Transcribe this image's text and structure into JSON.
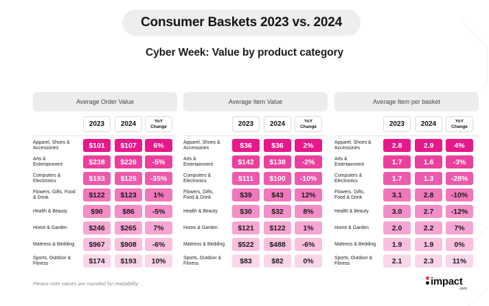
{
  "title": "Consumer Baskets 2023 vs. 2024",
  "subtitle": "Cyber Week: Value by product category",
  "footnote": "Please note values are rounded for readability",
  "logo": {
    "word": "impact",
    "suffix": ".com",
    "dot_top_color": "#e8363e",
    "dot_bottom_color": "#111111"
  },
  "row_colors": [
    {
      "bg": "#e6198a",
      "fg": "#ffffff"
    },
    {
      "bg": "#ec3e9c",
      "fg": "#ffffff"
    },
    {
      "bg": "#ee5aab",
      "fg": "#ffffff"
    },
    {
      "bg": "#f077b9",
      "fg": "#1a1a1a"
    },
    {
      "bg": "#f38fc6",
      "fg": "#1a1a1a"
    },
    {
      "bg": "#f5a6d2",
      "fg": "#1a1a1a"
    },
    {
      "bg": "#f8bfdf",
      "fg": "#1a1a1a"
    },
    {
      "bg": "#fad6ea",
      "fg": "#1a1a1a"
    }
  ],
  "col_headers": {
    "y2023": "2023",
    "y2024": "2024",
    "yoy_line1": "YoY",
    "yoy_line2": "Change"
  },
  "chart_data": {
    "type": "table",
    "title": "Consumer Baskets 2023 vs. 2024",
    "subtitle": "Cyber Week: Value by product category",
    "categories": [
      "Apparel, Shoes & Accessories",
      "Arts & Entertainment",
      "Computers & Electronics",
      "Flowers, Gifts, Food & Drink",
      "Health & Beauty",
      "Home & Garden",
      "Mattress & Bedding",
      "Sports, Outdoor & Fitness"
    ],
    "tables": [
      {
        "name": "Average Order Value",
        "columns": [
          "2023",
          "2024",
          "YoY Change"
        ],
        "category_labels": [
          [
            "Apparel, Shoes &",
            "Accessories"
          ],
          [
            "Arts &",
            "Entertainment"
          ],
          [
            "Computers &",
            "Electronics"
          ],
          [
            "Flowers, Gifts, Food",
            "& Drink"
          ],
          [
            "Health & Beauty"
          ],
          [
            "Home & Garden"
          ],
          [
            "Mattress & Bedding"
          ],
          [
            "Sports, Outdoor &",
            "Fitness"
          ]
        ],
        "rows": [
          [
            "$101",
            "$107",
            "6%"
          ],
          [
            "$238",
            "$226",
            "-5%"
          ],
          [
            "$193",
            "$125",
            "-35%"
          ],
          [
            "$122",
            "$123",
            "1%"
          ],
          [
            "$90",
            "$86",
            "-5%"
          ],
          [
            "$246",
            "$265",
            "7%"
          ],
          [
            "$967",
            "$908",
            "-6%"
          ],
          [
            "$174",
            "$193",
            "10%"
          ]
        ]
      },
      {
        "name": "Average Item Value",
        "columns": [
          "2023",
          "2024",
          "YoY Change"
        ],
        "category_labels": [
          [
            "Apparel, Shoes &",
            "Accessories"
          ],
          [
            "Arts &",
            "Entertainment"
          ],
          [
            "Computers &",
            "Electronics"
          ],
          [
            "Flowers, Gifts,",
            "Food & Drink"
          ],
          [
            "Health & Beauty"
          ],
          [
            "Home & Garden"
          ],
          [
            "Mattress & Bedding"
          ],
          [
            "Sports, Outdoor &",
            "Fitness"
          ]
        ],
        "rows": [
          [
            "$36",
            "$36",
            "2%"
          ],
          [
            "$142",
            "$138",
            "-2%"
          ],
          [
            "$111",
            "$100",
            "-10%"
          ],
          [
            "$39",
            "$43",
            "12%"
          ],
          [
            "$30",
            "$32",
            "8%"
          ],
          [
            "$121",
            "$122",
            "1%"
          ],
          [
            "$522",
            "$488",
            "-6%"
          ],
          [
            "$83",
            "$82",
            "0%"
          ]
        ]
      },
      {
        "name": "Average Item per basket",
        "columns": [
          "2023",
          "2024",
          "YoY Change"
        ],
        "category_labels": [
          [
            "Apparel, Shoes &",
            "Accessories"
          ],
          [
            "Arts &",
            "Entertainment"
          ],
          [
            "Computers &",
            "Electronics"
          ],
          [
            "Flowers, Gifts,",
            "Food & Drink"
          ],
          [
            "Health & Beauty"
          ],
          [
            "Home & Garden"
          ],
          [
            "Mattress & Bedding"
          ],
          [
            "Sports, Outdoor &",
            "Fitness"
          ]
        ],
        "rows": [
          [
            "2.8",
            "2.9",
            "4%"
          ],
          [
            "1.7",
            "1.6",
            "-3%"
          ],
          [
            "1.7",
            "1.3",
            "-28%"
          ],
          [
            "3.1",
            "2.8",
            "-10%"
          ],
          [
            "3.0",
            "2.7",
            "-12%"
          ],
          [
            "2.0",
            "2.2",
            "7%"
          ],
          [
            "1.9",
            "1.9",
            "0%"
          ],
          [
            "2.1",
            "2.3",
            "11%"
          ]
        ]
      }
    ]
  }
}
